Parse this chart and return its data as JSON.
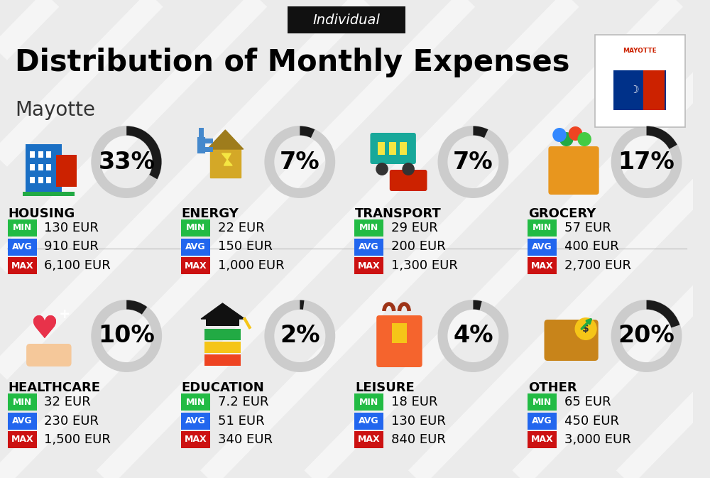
{
  "title": "Distribution of Monthly Expenses",
  "subtitle": "Mayotte",
  "tag": "Individual",
  "bg_color": "#ebebeb",
  "stripe_color": "#f5f5f5",
  "categories": [
    {
      "name": "HOUSING",
      "pct": 33,
      "min_val": "130 EUR",
      "avg_val": "910 EUR",
      "max_val": "6,100 EUR",
      "col": 0,
      "row": 0
    },
    {
      "name": "ENERGY",
      "pct": 7,
      "min_val": "22 EUR",
      "avg_val": "150 EUR",
      "max_val": "1,000 EUR",
      "col": 1,
      "row": 0
    },
    {
      "name": "TRANSPORT",
      "pct": 7,
      "min_val": "29 EUR",
      "avg_val": "200 EUR",
      "max_val": "1,300 EUR",
      "col": 2,
      "row": 0
    },
    {
      "name": "GROCERY",
      "pct": 17,
      "min_val": "57 EUR",
      "avg_val": "400 EUR",
      "max_val": "2,700 EUR",
      "col": 3,
      "row": 0
    },
    {
      "name": "HEALTHCARE",
      "pct": 10,
      "min_val": "32 EUR",
      "avg_val": "230 EUR",
      "max_val": "1,500 EUR",
      "col": 0,
      "row": 1
    },
    {
      "name": "EDUCATION",
      "pct": 2,
      "min_val": "7.2 EUR",
      "avg_val": "51 EUR",
      "max_val": "340 EUR",
      "col": 1,
      "row": 1
    },
    {
      "name": "LEISURE",
      "pct": 4,
      "min_val": "18 EUR",
      "avg_val": "130 EUR",
      "max_val": "840 EUR",
      "col": 2,
      "row": 1
    },
    {
      "name": "OTHER",
      "pct": 20,
      "min_val": "65 EUR",
      "avg_val": "450 EUR",
      "max_val": "3,000 EUR",
      "col": 3,
      "row": 1
    }
  ],
  "min_color": "#22bb44",
  "avg_color": "#2266ee",
  "max_color": "#cc1111",
  "donut_bg": "#cccccc",
  "donut_fg": "#1a1a1a",
  "title_fontsize": 30,
  "subtitle_fontsize": 20,
  "tag_fontsize": 14,
  "cat_fontsize": 13,
  "val_fontsize": 13,
  "badge_fontsize": 9,
  "pct_fontsize": 24
}
